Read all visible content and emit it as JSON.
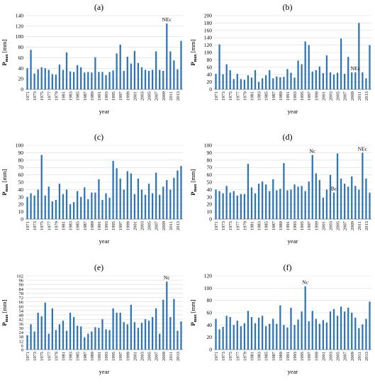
{
  "figure": {
    "title": "",
    "bar_color": "#2e75b6",
    "grid_color": "#d9d9d9",
    "axis_color": "#808080"
  },
  "chart_data": [
    {
      "panel_label": "(a)",
      "type": "bar",
      "ylabel_main": "P",
      "ylabel_sub": "max",
      "ylabel_unit": " [mm]",
      "xlabel": "year",
      "ylim": [
        0,
        140
      ],
      "yticks": [
        0,
        20,
        40,
        60,
        80,
        100,
        120,
        140
      ],
      "years": [
        1971,
        1972,
        1973,
        1974,
        1975,
        1976,
        1977,
        1978,
        1979,
        1980,
        1981,
        1982,
        1983,
        1984,
        1985,
        1986,
        1987,
        1988,
        1989,
        1990,
        1991,
        1992,
        1993,
        1994,
        1995,
        1996,
        1997,
        1998,
        1999,
        2000,
        2001,
        2002,
        2003,
        2004,
        2005,
        2006,
        2007,
        2008,
        2009,
        2010,
        2011,
        2012,
        2013,
        2014
      ],
      "values": [
        40,
        75,
        30,
        38,
        42,
        40,
        37,
        29,
        28,
        47,
        37,
        70,
        34,
        33,
        46,
        42,
        32,
        33,
        32,
        61,
        33,
        33,
        27,
        33,
        36,
        68,
        85,
        35,
        62,
        49,
        73,
        50,
        42,
        37,
        35,
        37,
        72,
        37,
        35,
        125,
        72,
        55,
        38,
        92
      ],
      "annotations": [
        {
          "year": 2010,
          "text": "NEc"
        }
      ]
    },
    {
      "panel_label": "(b)",
      "type": "bar",
      "ylabel_main": "P",
      "ylabel_sub": "max",
      "ylabel_unit": " [mm]",
      "xlabel": "year",
      "ylim": [
        0,
        200
      ],
      "yticks": [
        0,
        20,
        40,
        60,
        80,
        100,
        120,
        140,
        160,
        180,
        200
      ],
      "years": [
        1971,
        1972,
        1973,
        1974,
        1975,
        1976,
        1977,
        1978,
        1979,
        1980,
        1981,
        1982,
        1983,
        1984,
        1985,
        1986,
        1987,
        1988,
        1989,
        1990,
        1991,
        1992,
        1993,
        1994,
        1995,
        1996,
        1997,
        1998,
        1999,
        2000,
        2001,
        2002,
        2003,
        2004,
        2005,
        2006,
        2007,
        2008,
        2009,
        2010,
        2011,
        2012,
        2013,
        2014
      ],
      "values": [
        42,
        122,
        41,
        68,
        52,
        28,
        42,
        28,
        26,
        38,
        32,
        52,
        20,
        30,
        38,
        52,
        30,
        35,
        33,
        34,
        55,
        45,
        32,
        78,
        68,
        130,
        120,
        48,
        52,
        62,
        44,
        92,
        46,
        40,
        45,
        138,
        42,
        88,
        46,
        46,
        180,
        46,
        30,
        120
      ],
      "annotations": [
        {
          "year": 2010,
          "text": "NEc"
        }
      ]
    },
    {
      "panel_label": "(c)",
      "type": "bar",
      "ylabel_main": "P",
      "ylabel_sub": "max",
      "ylabel_unit": " [mm]",
      "xlabel": "year",
      "ylim": [
        0,
        100
      ],
      "yticks": [
        0,
        10,
        20,
        30,
        40,
        50,
        60,
        70,
        80,
        90,
        100
      ],
      "years": [
        1971,
        1972,
        1973,
        1974,
        1975,
        1976,
        1977,
        1978,
        1979,
        1980,
        1981,
        1982,
        1983,
        1984,
        1985,
        1986,
        1987,
        1988,
        1989,
        1990,
        1991,
        1992,
        1993,
        1994,
        1995,
        1996,
        1997,
        1998,
        1999,
        2000,
        2001,
        2002,
        2003,
        2004,
        2005,
        2006,
        2007,
        2008,
        2009,
        2010,
        2011,
        2012,
        2013,
        2014
      ],
      "values": [
        30,
        35,
        32,
        40,
        87,
        32,
        44,
        24,
        26,
        48,
        34,
        40,
        20,
        23,
        38,
        30,
        43,
        27,
        36,
        36,
        54,
        26,
        35,
        29,
        79,
        69,
        55,
        40,
        65,
        62,
        34,
        55,
        40,
        33,
        48,
        35,
        63,
        33,
        44,
        53,
        40,
        56,
        66,
        72
      ],
      "annotations": []
    },
    {
      "panel_label": "(d)",
      "type": "bar",
      "ylabel_main": "P",
      "ylabel_sub": "max",
      "ylabel_unit": " [mm]",
      "xlabel": "year",
      "ylim": [
        0,
        100
      ],
      "yticks": [
        0,
        10,
        20,
        30,
        40,
        50,
        60,
        70,
        80,
        90,
        100
      ],
      "years": [
        1971,
        1972,
        1973,
        1974,
        1975,
        1976,
        1977,
        1978,
        1979,
        1980,
        1981,
        1982,
        1983,
        1984,
        1985,
        1986,
        1987,
        1988,
        1989,
        1990,
        1991,
        1992,
        1993,
        1994,
        1995,
        1996,
        1997,
        1998,
        1999,
        2000,
        2001,
        2002,
        2003,
        2004,
        2005,
        2006,
        2007,
        2008,
        2009,
        2010,
        2011,
        2012,
        2013,
        2014
      ],
      "values": [
        40,
        38,
        35,
        45,
        36,
        38,
        32,
        34,
        34,
        75,
        43,
        35,
        48,
        51,
        47,
        38,
        54,
        39,
        41,
        76,
        39,
        40,
        47,
        44,
        45,
        38,
        51,
        87,
        62,
        53,
        29,
        40,
        60,
        36,
        89,
        55,
        48,
        44,
        58,
        45,
        40,
        90,
        55,
        36
      ],
      "annotations": [
        {
          "year": 1998,
          "text": "Nc"
        },
        {
          "year": 2004,
          "text": "Bc"
        },
        {
          "year": 2012,
          "text": "NEc"
        }
      ]
    },
    {
      "panel_label": "(e)",
      "type": "bar",
      "ylabel_main": "P",
      "ylabel_sub": "max",
      "ylabel_unit": " [mm]",
      "xlabel": "year",
      "ylim": [
        0,
        102
      ],
      "yticks": [
        0,
        6,
        12,
        18,
        24,
        30,
        36,
        42,
        48,
        54,
        60,
        66,
        72,
        78,
        84,
        90,
        96,
        102
      ],
      "years": [
        1971,
        1972,
        1973,
        1974,
        1975,
        1976,
        1977,
        1978,
        1979,
        1980,
        1981,
        1982,
        1983,
        1984,
        1985,
        1986,
        1987,
        1988,
        1989,
        1990,
        1991,
        1992,
        1993,
        1994,
        1995,
        1996,
        1997,
        1998,
        1999,
        2000,
        2001,
        2002,
        2003,
        2004,
        2005,
        2006,
        2007,
        2008,
        2009,
        2010,
        2011,
        2012,
        2013,
        2014
      ],
      "values": [
        20,
        35,
        25,
        51,
        46,
        65,
        22,
        57,
        27,
        35,
        40,
        26,
        51,
        45,
        33,
        32,
        17,
        22,
        25,
        31,
        30,
        42,
        28,
        27,
        57,
        51,
        51,
        38,
        35,
        62,
        38,
        30,
        37,
        42,
        40,
        45,
        57,
        22,
        69,
        94,
        45,
        70,
        26,
        39
      ],
      "annotations": [
        {
          "year": 2010,
          "text": "Nc"
        }
      ]
    },
    {
      "panel_label": "(f)",
      "type": "bar",
      "ylabel_main": "P",
      "ylabel_sub": "max",
      "ylabel_unit": " [mm]",
      "xlabel": "year",
      "ylim": [
        0,
        120
      ],
      "yticks": [
        0,
        20,
        40,
        60,
        80,
        100,
        120
      ],
      "years": [
        1971,
        1972,
        1973,
        1974,
        1975,
        1976,
        1977,
        1978,
        1979,
        1980,
        1981,
        1982,
        1983,
        1984,
        1985,
        1986,
        1987,
        1988,
        1989,
        1990,
        1991,
        1992,
        1993,
        1994,
        1995,
        1996,
        1997,
        1998,
        1999,
        2000,
        2001,
        2002,
        2003,
        2004,
        2005,
        2006,
        2007,
        2008,
        2009,
        2010,
        2011,
        2012,
        2013,
        2014
      ],
      "values": [
        50,
        33,
        37,
        55,
        53,
        40,
        47,
        38,
        43,
        63,
        53,
        43,
        52,
        55,
        38,
        42,
        50,
        42,
        72,
        40,
        36,
        68,
        40,
        49,
        62,
        103,
        46,
        63,
        50,
        42,
        48,
        44,
        62,
        66,
        55,
        70,
        62,
        68,
        60,
        52,
        35,
        41,
        50,
        78
      ],
      "annotations": [
        {
          "year": 1996,
          "text": "Nc"
        }
      ]
    }
  ]
}
